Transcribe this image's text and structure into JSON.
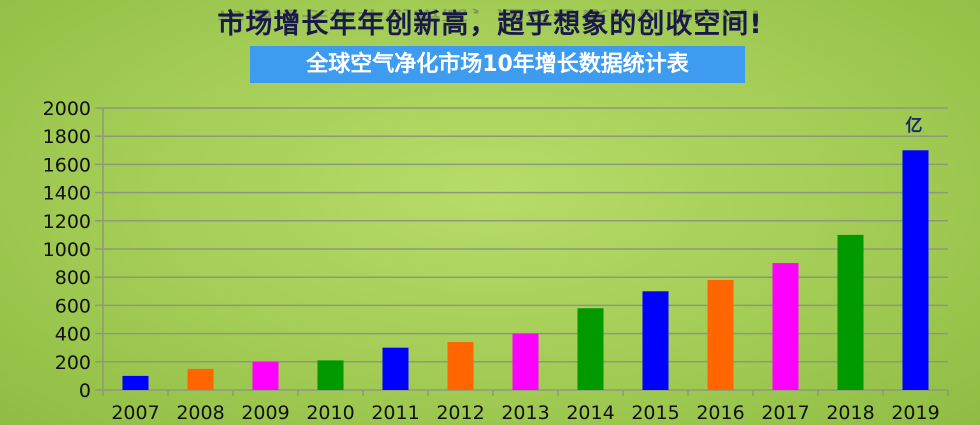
{
  "header": {
    "title": "市场增长年年创新高，超乎想象的创收空间!",
    "subtitle": "全球空气净化市场10年增长数据统计表"
  },
  "chart_data": {
    "type": "bar",
    "title": "全球空气净化市场10年增长数据统计表",
    "unit_label": "亿",
    "categories": [
      "2007",
      "2008",
      "2009",
      "2010",
      "2011",
      "2012",
      "2013",
      "2014",
      "2015",
      "2016",
      "2017",
      "2018",
      "2019"
    ],
    "values": [
      100,
      150,
      200,
      210,
      300,
      340,
      400,
      580,
      700,
      780,
      900,
      1100,
      1700
    ],
    "colors": [
      "#0000ff",
      "#ff6600",
      "#ff00ff",
      "#009900",
      "#0000ff",
      "#ff6600",
      "#ff00ff",
      "#009900",
      "#0000ff",
      "#ff6600",
      "#ff00ff",
      "#009900",
      "#0000ff"
    ],
    "yticks": [
      "0",
      "200",
      "400",
      "600",
      "800",
      "1000",
      "1200",
      "1400",
      "1600",
      "1800",
      "2000"
    ],
    "ylim": [
      0,
      2000
    ],
    "grid": true,
    "legend": "none"
  }
}
